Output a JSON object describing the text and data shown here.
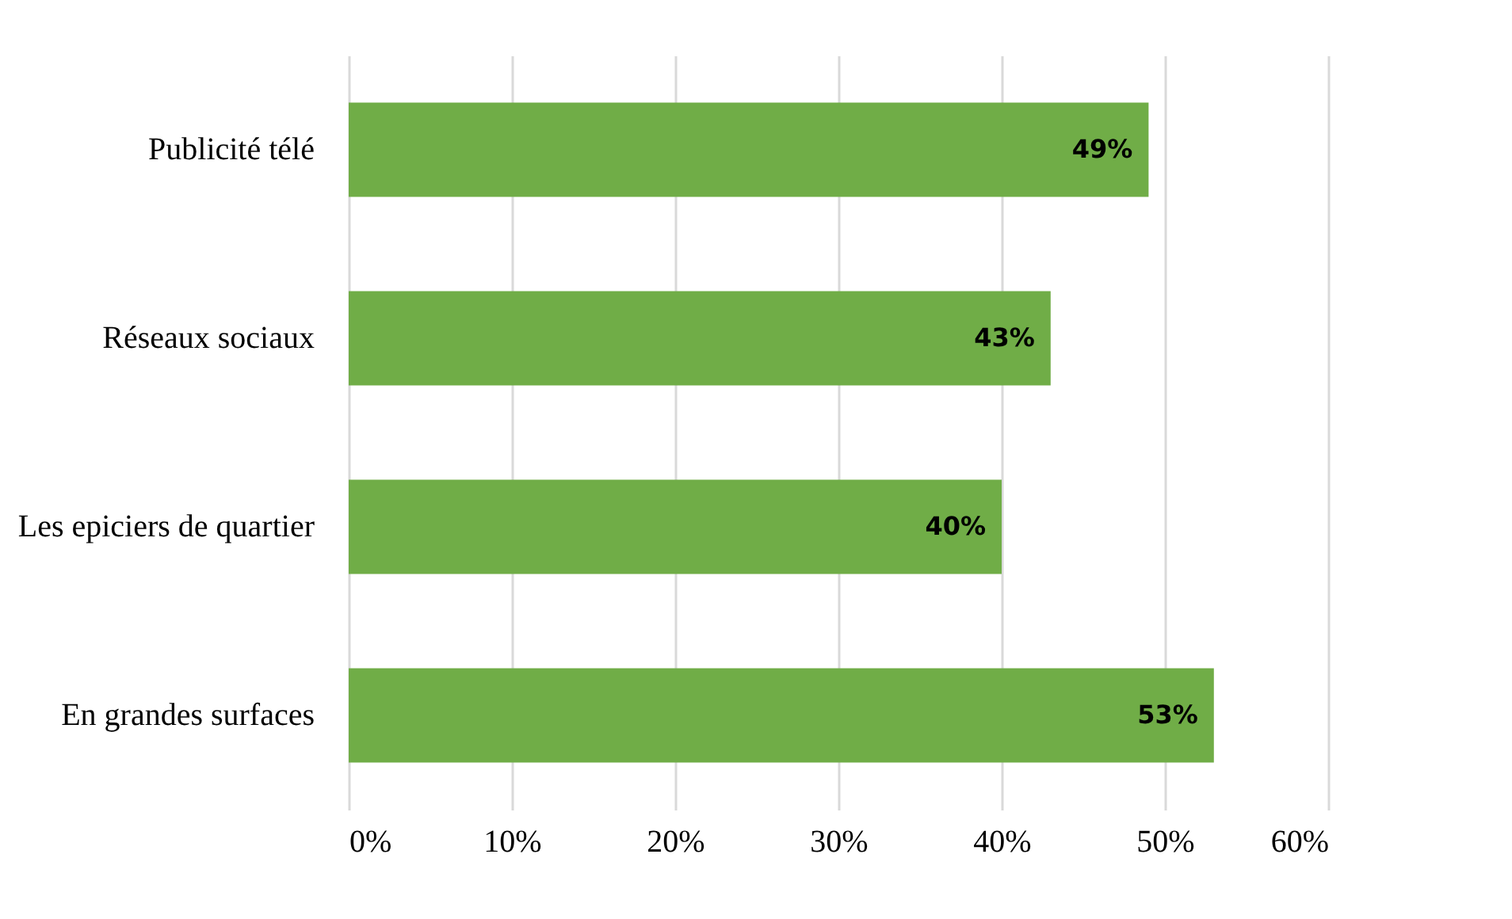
{
  "chart_data": {
    "type": "bar",
    "orientation": "horizontal",
    "categories": [
      "Publicité télé",
      "Réseaux sociaux",
      "Les epiciers de quartier",
      "En grandes surfaces"
    ],
    "values": [
      49,
      43,
      40,
      53
    ],
    "value_labels": [
      "49%",
      "43%",
      "40%",
      "53%"
    ],
    "color": "#70ad47",
    "xlim": [
      0,
      60
    ],
    "xticks": [
      {
        "value": 0,
        "label": "0%"
      },
      {
        "value": 10,
        "label": "10%"
      },
      {
        "value": 20,
        "label": "20%"
      },
      {
        "value": 30,
        "label": "30%"
      },
      {
        "value": 40,
        "label": "40%"
      },
      {
        "value": 50,
        "label": "50%"
      },
      {
        "value": 60,
        "label": "60%"
      }
    ],
    "grid": "x"
  }
}
